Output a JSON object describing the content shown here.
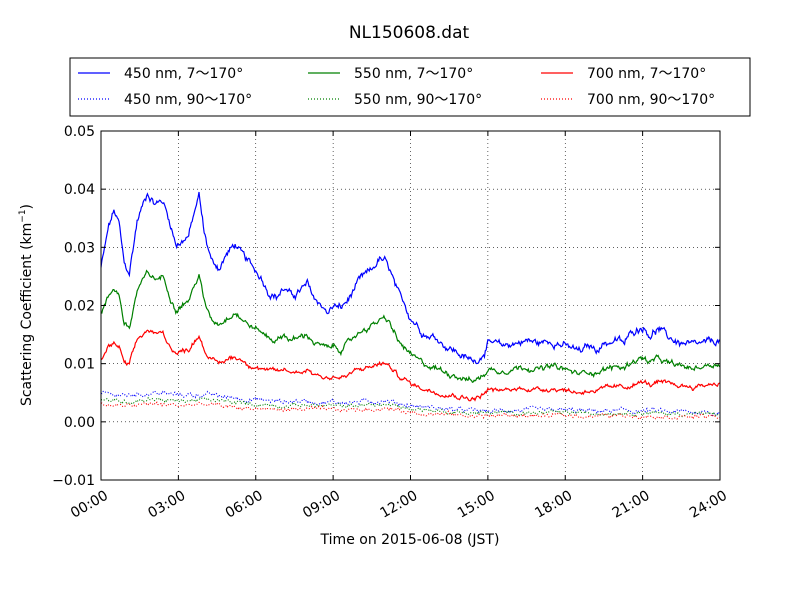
{
  "chart_data": {
    "type": "line",
    "title": "NL150608.dat",
    "xlabel": "Time on 2015-06-08 (JST)",
    "ylabel_main": "Scattering Coefficient (km",
    "ylabel_sup": "−1",
    "ylabel_end": ")",
    "xlim": [
      0,
      24
    ],
    "ylim": [
      -0.01,
      0.05
    ],
    "x_ticks": [
      0,
      3,
      6,
      9,
      12,
      15,
      18,
      21,
      24
    ],
    "x_tick_labels": [
      "00:00",
      "03:00",
      "06:00",
      "09:00",
      "12:00",
      "15:00",
      "18:00",
      "21:00",
      "24:00"
    ],
    "y_ticks": [
      -0.01,
      0.0,
      0.01,
      0.02,
      0.03,
      0.04,
      0.05
    ],
    "y_tick_labels": [
      "−0.01",
      "0.00",
      "0.01",
      "0.02",
      "0.03",
      "0.04",
      "0.05"
    ],
    "grid": true,
    "legend_position": "top",
    "series": [
      {
        "name": "450 nm, 7～170°",
        "color": "#0000ff",
        "style": "solid",
        "x": [
          0.0,
          0.3,
          0.5,
          0.7,
          0.9,
          1.1,
          1.4,
          1.8,
          2.1,
          2.4,
          2.7,
          2.9,
          3.1,
          3.4,
          3.6,
          3.8,
          4.0,
          4.3,
          4.6,
          4.9,
          5.2,
          5.5,
          5.8,
          6.2,
          6.5,
          6.8,
          7.1,
          7.4,
          7.7,
          8.0,
          8.3,
          8.6,
          8.8,
          9.0,
          9.3,
          9.6,
          9.9,
          10.2,
          10.5,
          10.8,
          11.0,
          11.2,
          11.5,
          11.8,
          12.0,
          12.3,
          12.6,
          13.0,
          13.4,
          13.8,
          14.1,
          14.4,
          14.7,
          15.0,
          15.5,
          16.0,
          16.5,
          17.0,
          17.5,
          18.0,
          18.3,
          18.6,
          18.9,
          19.2,
          19.5,
          20.0,
          20.3,
          20.6,
          21.0,
          21.3,
          21.6,
          22.0,
          22.5,
          23.0,
          23.5,
          24.0
        ],
        "y": [
          0.0265,
          0.0335,
          0.0362,
          0.034,
          0.027,
          0.0255,
          0.0345,
          0.0395,
          0.0375,
          0.038,
          0.034,
          0.0305,
          0.031,
          0.032,
          0.0355,
          0.039,
          0.0325,
          0.0275,
          0.0265,
          0.029,
          0.0305,
          0.0285,
          0.027,
          0.025,
          0.0225,
          0.0215,
          0.023,
          0.0215,
          0.0225,
          0.0235,
          0.021,
          0.02,
          0.0185,
          0.02,
          0.0195,
          0.021,
          0.0235,
          0.025,
          0.026,
          0.028,
          0.0275,
          0.026,
          0.022,
          0.02,
          0.018,
          0.0165,
          0.015,
          0.0145,
          0.013,
          0.012,
          0.011,
          0.0105,
          0.011,
          0.0135,
          0.013,
          0.0135,
          0.014,
          0.0135,
          0.014,
          0.013,
          0.0125,
          0.012,
          0.013,
          0.0125,
          0.0135,
          0.014,
          0.0135,
          0.0155,
          0.0165,
          0.015,
          0.016,
          0.0145,
          0.0135,
          0.013,
          0.0135,
          0.014
        ],
        "noise": 0.0008
      },
      {
        "name": "450 nm, 90～170°",
        "color": "#0000ff",
        "style": "dotted",
        "x": [
          0.0,
          1.0,
          2.0,
          3.0,
          4.0,
          5.0,
          6.0,
          7.0,
          8.0,
          9.0,
          10.0,
          11.0,
          12.0,
          13.0,
          14.0,
          15.0,
          16.0,
          17.0,
          18.0,
          19.0,
          20.0,
          21.0,
          22.0,
          23.0,
          24.0
        ],
        "y": [
          0.0048,
          0.0045,
          0.005,
          0.0046,
          0.0047,
          0.0042,
          0.0038,
          0.0035,
          0.0036,
          0.0033,
          0.0034,
          0.0037,
          0.0028,
          0.0024,
          0.002,
          0.0018,
          0.002,
          0.0019,
          0.002,
          0.0018,
          0.0019,
          0.0019,
          0.0017,
          0.0017,
          0.0016
        ],
        "noise": 0.0005
      },
      {
        "name": "550 nm, 7～170°",
        "color": "#008000",
        "style": "solid",
        "x": [
          0.0,
          0.3,
          0.5,
          0.7,
          0.9,
          1.1,
          1.4,
          1.8,
          2.1,
          2.4,
          2.7,
          2.9,
          3.1,
          3.4,
          3.6,
          3.8,
          4.0,
          4.3,
          4.6,
          4.9,
          5.2,
          5.5,
          5.8,
          6.2,
          6.5,
          6.8,
          7.1,
          7.4,
          7.7,
          8.0,
          8.3,
          8.6,
          8.8,
          9.0,
          9.3,
          9.6,
          9.9,
          10.2,
          10.5,
          10.8,
          11.0,
          11.2,
          11.5,
          11.8,
          12.0,
          12.3,
          12.6,
          13.0,
          13.4,
          13.8,
          14.1,
          14.4,
          14.7,
          15.0,
          15.5,
          16.0,
          16.5,
          17.0,
          17.5,
          18.0,
          18.3,
          18.6,
          18.9,
          19.2,
          19.5,
          20.0,
          20.3,
          20.6,
          21.0,
          21.3,
          21.6,
          22.0,
          22.5,
          23.0,
          23.5,
          24.0
        ],
        "y": [
          0.0185,
          0.0215,
          0.023,
          0.022,
          0.017,
          0.016,
          0.0225,
          0.0255,
          0.0245,
          0.025,
          0.0215,
          0.0195,
          0.02,
          0.021,
          0.023,
          0.0255,
          0.0205,
          0.0175,
          0.017,
          0.018,
          0.019,
          0.0175,
          0.0165,
          0.0155,
          0.0145,
          0.014,
          0.015,
          0.014,
          0.0145,
          0.015,
          0.0135,
          0.013,
          0.0125,
          0.013,
          0.0125,
          0.0135,
          0.015,
          0.016,
          0.0165,
          0.0175,
          0.0175,
          0.017,
          0.014,
          0.0125,
          0.0115,
          0.0105,
          0.0098,
          0.0092,
          0.0085,
          0.008,
          0.0075,
          0.007,
          0.0075,
          0.009,
          0.0088,
          0.0092,
          0.0095,
          0.009,
          0.0095,
          0.009,
          0.0085,
          0.0082,
          0.0088,
          0.0085,
          0.009,
          0.0095,
          0.0092,
          0.0105,
          0.011,
          0.0102,
          0.0108,
          0.01,
          0.0095,
          0.0092,
          0.0098,
          0.01
        ],
        "noise": 0.0006
      },
      {
        "name": "550 nm, 90～170°",
        "color": "#008000",
        "style": "dotted",
        "x": [
          0.0,
          1.0,
          2.0,
          3.0,
          4.0,
          5.0,
          6.0,
          7.0,
          8.0,
          9.0,
          10.0,
          11.0,
          12.0,
          13.0,
          14.0,
          15.0,
          16.0,
          17.0,
          18.0,
          19.0,
          20.0,
          21.0,
          22.0,
          23.0,
          24.0
        ],
        "y": [
          0.0038,
          0.0035,
          0.004,
          0.0036,
          0.0038,
          0.0034,
          0.003,
          0.0028,
          0.0029,
          0.0027,
          0.0028,
          0.003,
          0.0023,
          0.0019,
          0.0016,
          0.0015,
          0.0016,
          0.0015,
          0.0016,
          0.0015,
          0.0016,
          0.0016,
          0.0014,
          0.0014,
          0.0013
        ],
        "noise": 0.0004
      },
      {
        "name": "700 nm, 7～170°",
        "color": "#ff0000",
        "style": "solid",
        "x": [
          0.0,
          0.3,
          0.5,
          0.7,
          0.9,
          1.1,
          1.4,
          1.8,
          2.1,
          2.4,
          2.7,
          2.9,
          3.1,
          3.4,
          3.6,
          3.8,
          4.0,
          4.3,
          4.6,
          4.9,
          5.2,
          5.5,
          5.8,
          6.2,
          6.5,
          6.8,
          7.1,
          7.4,
          7.7,
          8.0,
          8.3,
          8.6,
          8.8,
          9.0,
          9.3,
          9.6,
          9.9,
          10.2,
          10.5,
          10.8,
          11.0,
          11.2,
          11.5,
          11.8,
          12.0,
          12.3,
          12.6,
          13.0,
          13.4,
          13.8,
          14.1,
          14.4,
          14.7,
          15.0,
          15.5,
          16.0,
          16.5,
          17.0,
          17.5,
          18.0,
          18.3,
          18.6,
          18.9,
          19.2,
          19.5,
          20.0,
          20.3,
          20.6,
          21.0,
          21.3,
          21.6,
          22.0,
          22.5,
          23.0,
          23.5,
          24.0
        ],
        "y": [
          0.0105,
          0.013,
          0.0135,
          0.0128,
          0.01,
          0.0098,
          0.014,
          0.0158,
          0.015,
          0.0152,
          0.013,
          0.0118,
          0.012,
          0.0125,
          0.0138,
          0.015,
          0.0125,
          0.0105,
          0.01,
          0.0108,
          0.0112,
          0.0105,
          0.0098,
          0.0092,
          0.0088,
          0.0085,
          0.009,
          0.0085,
          0.0087,
          0.009,
          0.0082,
          0.0078,
          0.0075,
          0.0078,
          0.0075,
          0.008,
          0.0088,
          0.0092,
          0.0095,
          0.01,
          0.01,
          0.0095,
          0.008,
          0.0072,
          0.0066,
          0.006,
          0.0056,
          0.0052,
          0.0048,
          0.0045,
          0.0042,
          0.004,
          0.0043,
          0.0055,
          0.0053,
          0.0056,
          0.0058,
          0.0055,
          0.0058,
          0.0055,
          0.0052,
          0.005,
          0.0055,
          0.0053,
          0.0056,
          0.006,
          0.0058,
          0.0065,
          0.0068,
          0.0064,
          0.0067,
          0.0064,
          0.0062,
          0.006,
          0.0064,
          0.0067
        ],
        "noise": 0.0005
      },
      {
        "name": "700 nm, 90～170°",
        "color": "#ff0000",
        "style": "dotted",
        "x": [
          0.0,
          1.0,
          2.0,
          3.0,
          4.0,
          5.0,
          6.0,
          7.0,
          8.0,
          9.0,
          10.0,
          11.0,
          12.0,
          13.0,
          14.0,
          15.0,
          16.0,
          17.0,
          18.0,
          19.0,
          20.0,
          21.0,
          22.0,
          23.0,
          24.0
        ],
        "y": [
          0.003,
          0.0027,
          0.0031,
          0.0028,
          0.003,
          0.0026,
          0.0023,
          0.0021,
          0.0022,
          0.002,
          0.0021,
          0.0023,
          0.0017,
          0.0014,
          0.0011,
          0.001,
          0.0011,
          0.001,
          0.0011,
          0.001,
          0.0011,
          0.0011,
          0.0009,
          0.0009,
          0.0009
        ],
        "noise": 0.0004
      }
    ]
  }
}
